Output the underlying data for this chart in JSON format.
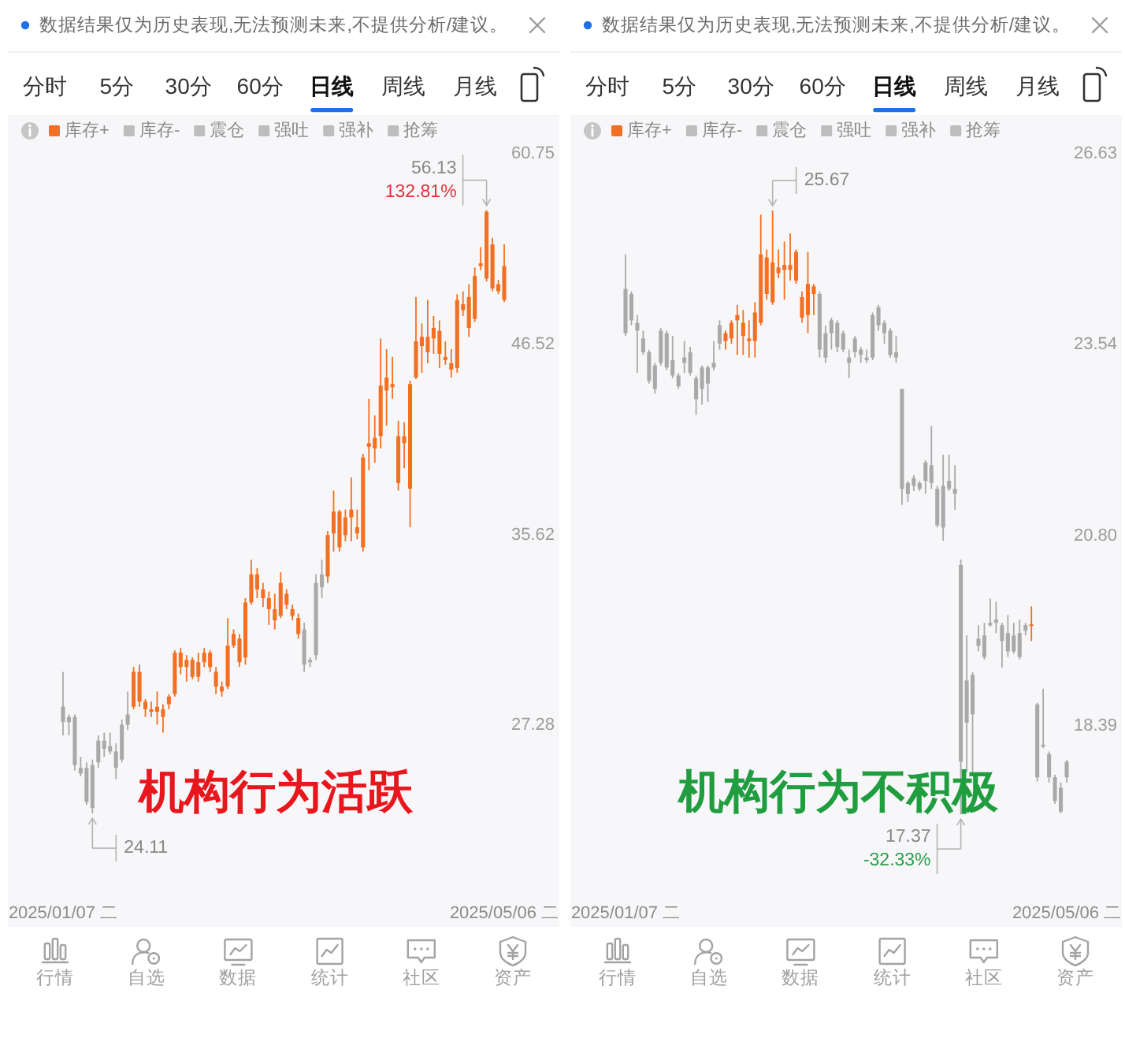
{
  "chart_data": [
    {
      "type": "candlestick",
      "legend": "top left",
      "log": true,
      "ylim": [
        20.57,
        60.75
      ],
      "yticks": [
        60.75,
        46.52,
        35.62,
        27.28
      ],
      "categories": [
        "2025/01/07 二",
        null,
        null,
        null,
        null,
        null,
        null,
        null,
        null,
        null,
        null,
        null,
        null,
        null,
        null,
        null,
        null,
        null,
        null,
        null,
        null,
        null,
        null,
        null,
        null,
        null,
        null,
        null,
        null,
        null,
        null,
        null,
        null,
        null,
        null,
        null,
        null,
        null,
        null,
        null,
        null,
        null,
        null,
        null,
        null,
        null,
        null,
        null,
        null,
        null,
        null,
        null,
        null,
        null,
        null,
        null,
        null,
        null,
        null,
        null,
        null,
        null,
        null,
        null,
        null,
        null,
        null,
        null,
        null,
        null,
        null,
        null,
        null,
        null,
        null,
        "2025/05/06 二"
      ],
      "series": [
        {
          "name": "库存+",
          "color": "#f36f21",
          "ohlc": [
            null,
            null,
            null,
            null,
            null,
            null,
            null,
            null,
            null,
            null,
            null,
            null,
            [
              28.0,
              29.6,
              27.9,
              29.4
            ],
            [
              28.2,
              29.7,
              28.0,
              29.4
            ],
            [
              27.9,
              28.3,
              27.6,
              28.2
            ],
            [
              27.8,
              28.2,
              27.6,
              27.9
            ],
            [
              27.8,
              28.6,
              27.3,
              28.0
            ],
            [
              27.6,
              28.1,
              27.0,
              27.9
            ],
            [
              28.1,
              28.5,
              27.9,
              28.4
            ],
            [
              28.5,
              30.3,
              28.4,
              30.2
            ],
            [
              29.6,
              30.4,
              29.3,
              30.2
            ],
            [
              29.6,
              30.1,
              29.0,
              29.9
            ],
            [
              29.2,
              30.0,
              29.1,
              29.9
            ],
            [
              29.2,
              30.2,
              29.0,
              29.8
            ],
            [
              29.8,
              30.4,
              29.6,
              30.2
            ],
            [
              29.6,
              30.3,
              29.4,
              30.2
            ],
            [
              28.8,
              29.6,
              28.5,
              29.4
            ],
            [
              28.6,
              29.0,
              28.4,
              28.8
            ],
            [
              28.8,
              31.7,
              28.7,
              30.5
            ],
            [
              30.5,
              31.2,
              30.4,
              31.0
            ],
            [
              29.8,
              31.0,
              29.6,
              30.8
            ],
            [
              30.0,
              32.6,
              29.7,
              32.4
            ],
            [
              32.4,
              34.4,
              32.3,
              33.7
            ],
            [
              33.0,
              34.0,
              32.6,
              33.7
            ],
            [
              32.6,
              33.3,
              32.2,
              33.0
            ],
            [
              32.1,
              32.9,
              31.4,
              32.6
            ],
            [
              31.6,
              32.8,
              31.2,
              32.1
            ],
            [
              31.8,
              33.8,
              31.7,
              33.3
            ],
            [
              32.3,
              33.0,
              32.1,
              32.8
            ],
            [
              31.8,
              32.3,
              31.6,
              32.1
            ],
            [
              31.0,
              31.9,
              30.8,
              31.7
            ],
            null,
            null,
            null,
            null,
            [
              33.6,
              35.8,
              33.3,
              35.6
            ],
            [
              35.7,
              37.9,
              34.8,
              36.8
            ],
            [
              35.0,
              36.9,
              34.8,
              36.8
            ],
            [
              35.6,
              36.9,
              35.3,
              36.5
            ],
            [
              36.5,
              38.6,
              35.3,
              36.9
            ],
            [
              35.7,
              36.9,
              35.4,
              36.0
            ],
            [
              35.0,
              39.9,
              34.8,
              39.7
            ],
            [
              40.3,
              43.1,
              39.0,
              40.5
            ],
            [
              40.2,
              42.1,
              39.4,
              40.8
            ],
            [
              40.9,
              46.9,
              40.2,
              43.9
            ],
            [
              43.6,
              46.2,
              41.5,
              44.4
            ],
            [
              43.8,
              45.7,
              43.1,
              44.0
            ],
            [
              38.3,
              41.8,
              37.9,
              40.9
            ],
            [
              40.5,
              41.7,
              39.1,
              40.9
            ],
            [
              38.0,
              44.2,
              36.0,
              44.0
            ],
            [
              44.4,
              49.7,
              44.3,
              46.7
            ],
            [
              46.4,
              47.9,
              44.7,
              47.0
            ],
            [
              46.0,
              49.5,
              45.3,
              47.0
            ],
            [
              46.9,
              48.4,
              45.9,
              47.6
            ],
            [
              45.9,
              48.1,
              45.0,
              47.4
            ],
            [
              45.5,
              46.7,
              45.2,
              45.7
            ],
            [
              44.9,
              46.2,
              44.4,
              45.3
            ],
            [
              45.0,
              49.9,
              44.7,
              49.5
            ],
            [
              48.8,
              50.1,
              48.4,
              49.2
            ],
            [
              47.6,
              50.6,
              47.0,
              49.7
            ],
            [
              48.2,
              51.8,
              48.0,
              51.2
            ],
            [
              51.9,
              53.3,
              51.6,
              52.1
            ],
            [
              51.0,
              56.13,
              50.8,
              56.0
            ],
            [
              50.3,
              54.0,
              50.1,
              53.5
            ],
            [
              50.1,
              50.9,
              49.9,
              50.6
            ],
            [
              49.5,
              53.5,
              49.35,
              51.9
            ]
          ]
        },
        {
          "color": "#a9a9a9",
          "ohlc": [
            [
              27.4,
              29.4,
              26.9,
              28.0
            ],
            [
              27.4,
              27.7,
              26.9,
              27.6
            ],
            [
              25.8,
              27.7,
              25.6,
              27.6
            ],
            [
              25.5,
              26.1,
              25.4,
              25.7
            ],
            [
              24.5,
              25.9,
              24.4,
              25.7
            ],
            [
              24.3,
              26.0,
              24.11,
              25.8
            ],
            [
              25.9,
              26.9,
              25.7,
              26.7
            ],
            [
              26.4,
              27.0,
              26.1,
              26.7
            ],
            [
              26.3,
              27.0,
              26.2,
              26.5
            ],
            [
              25.7,
              26.6,
              25.3,
              26.3
            ],
            [
              26.0,
              27.5,
              25.9,
              27.3
            ],
            [
              27.3,
              28.6,
              27.1,
              27.7
            ],
            null,
            null,
            null,
            null,
            null,
            null,
            null,
            null,
            null,
            null,
            null,
            null,
            null,
            null,
            null,
            null,
            null,
            null,
            null,
            null,
            null,
            null,
            null,
            null,
            null,
            null,
            null,
            null,
            null,
            [
              29.7,
              31.5,
              29.4,
              31.2
            ],
            [
              29.8,
              30.0,
              29.6,
              29.9
            ],
            [
              30.1,
              33.7,
              29.9,
              33.3
            ],
            [
              33.1,
              34.4,
              32.6,
              33.7
            ],
            null,
            null,
            null,
            null,
            null,
            null,
            null,
            null,
            null,
            null,
            null,
            null,
            null,
            null,
            null,
            null,
            null,
            null,
            null,
            null,
            null,
            null,
            null,
            null,
            null,
            null,
            null,
            null,
            null,
            null,
            null
          ]
        }
      ],
      "annotations": [
        "数据结果仅为历史表现,无法预测未来,不提供分析/建议。",
        "分时",
        "5分",
        "30分",
        "60分",
        "日线",
        "周线",
        "月线",
        "库存-",
        "震仓",
        "强吐",
        "强补",
        "抢筹",
        "行情",
        "自选",
        "数据",
        "统计",
        "社区",
        "资产",
        "机构行为活跃",
        "24.11",
        "56.13",
        "132.81%"
      ]
    },
    {
      "type": "candlestick",
      "legend": "top left",
      "log": true,
      "ylim": [
        16.15,
        26.63
      ],
      "yticks": [
        26.63,
        23.54,
        {
          "value": 20.8,
          "label": "20.80"
        },
        18.39
      ],
      "categories": [
        "2025/01/07 二",
        null,
        null,
        null,
        null,
        null,
        null,
        null,
        null,
        null,
        null,
        null,
        null,
        null,
        null,
        null,
        null,
        null,
        null,
        null,
        null,
        null,
        null,
        null,
        null,
        null,
        null,
        null,
        null,
        null,
        null,
        null,
        null,
        null,
        null,
        null,
        null,
        null,
        null,
        null,
        null,
        null,
        null,
        null,
        null,
        null,
        null,
        null,
        null,
        null,
        null,
        null,
        null,
        null,
        null,
        null,
        null,
        null,
        null,
        null,
        null,
        null,
        null,
        null,
        null,
        null,
        null,
        null,
        null,
        null,
        null,
        null,
        null,
        null,
        null,
        "2025/05/06 二"
      ],
      "series": [
        {
          "name": "库存+",
          "color": "#f36f21",
          "ohlc": [
            null,
            null,
            null,
            null,
            null,
            null,
            null,
            null,
            null,
            null,
            null,
            null,
            null,
            null,
            null,
            null,
            null,
            [
              23.59,
              23.75,
              23.46,
              23.71
            ],
            [
              23.63,
              23.91,
              23.55,
              23.87
            ],
            [
              23.91,
              24.15,
              23.38,
              23.99
            ],
            [
              23.67,
              24.07,
              23.38,
              23.87
            ],
            [
              23.59,
              23.91,
              23.34,
              23.63
            ],
            [
              23.59,
              24.19,
              23.34,
              24.03
            ],
            [
              23.87,
              25.6,
              23.83,
              24.95
            ],
            [
              24.32,
              25.03,
              24.23,
              24.9
            ],
            [
              24.19,
              25.67,
              24.15,
              24.82
            ],
            [
              24.65,
              25.03,
              24.57,
              24.74
            ],
            [
              24.7,
              25.16,
              24.23,
              24.78
            ],
            [
              24.7,
              25.29,
              24.53,
              24.78
            ],
            [
              24.53,
              25.03,
              24.48,
              24.99
            ],
            [
              23.95,
              24.36,
              23.87,
              24.27
            ],
            [
              23.99,
              24.99,
              23.71,
              24.48
            ],
            [
              24.32,
              24.48,
              23.99,
              24.44
            ],
            null,
            null,
            null,
            null,
            null,
            null,
            null,
            null,
            null,
            null,
            null,
            null,
            null,
            null,
            null,
            null,
            null,
            null,
            null,
            null,
            null,
            null,
            null,
            null,
            null,
            null,
            null,
            null,
            null,
            null,
            null,
            null,
            null,
            null,
            null,
            null,
            [
              19.62,
              19.87,
              19.43,
              19.64
            ],
            null,
            null,
            null,
            null,
            null,
            null
          ]
        },
        {
          "color": "#a9a9a9",
          "ohlc": [
            [
              23.71,
              24.95,
              23.67,
              24.4
            ],
            [
              23.91,
              24.36,
              23.83,
              24.32
            ],
            [
              23.75,
              23.99,
              23.11,
              23.87
            ],
            [
              23.42,
              23.75,
              23.38,
              23.63
            ],
            [
              22.99,
              23.46,
              22.95,
              23.42
            ],
            [
              22.87,
              23.26,
              22.8,
              23.22
            ],
            [
              23.26,
              23.79,
              23.22,
              23.75
            ],
            [
              23.19,
              23.75,
              23.15,
              23.71
            ],
            [
              23.07,
              23.67,
              23.03,
              23.3
            ],
            [
              22.91,
              23.11,
              22.87,
              23.07
            ],
            [
              23.26,
              23.59,
              23.11,
              23.34
            ],
            [
              23.11,
              23.5,
              23.07,
              23.42
            ],
            [
              22.72,
              23.07,
              22.49,
              23.03
            ],
            [
              22.87,
              23.22,
              22.64,
              23.19
            ],
            [
              22.95,
              23.22,
              22.68,
              23.19
            ],
            [
              23.19,
              23.59,
              23.15,
              23.26
            ],
            [
              23.55,
              23.91,
              23.46,
              23.83
            ],
            null,
            null,
            null,
            null,
            null,
            null,
            null,
            null,
            null,
            null,
            null,
            null,
            null,
            null,
            null,
            null,
            [
              23.46,
              24.36,
              23.34,
              24.32
            ],
            [
              23.34,
              23.83,
              23.26,
              23.71
            ],
            [
              23.71,
              23.95,
              23.46,
              23.91
            ],
            [
              23.5,
              23.91,
              23.42,
              23.87
            ],
            [
              23.46,
              23.75,
              23.42,
              23.71
            ],
            [
              23.26,
              23.46,
              23.03,
              23.34
            ],
            [
              23.42,
              23.67,
              23.34,
              23.63
            ],
            [
              23.38,
              23.5,
              23.26,
              23.46
            ],
            [
              23.3,
              23.46,
              23.26,
              23.34
            ],
            [
              23.34,
              24.03,
              23.3,
              23.99
            ],
            [
              23.83,
              24.15,
              23.75,
              24.11
            ],
            [
              23.71,
              23.91,
              23.55,
              23.87
            ],
            [
              23.38,
              23.79,
              23.34,
              23.75
            ],
            [
              23.34,
              23.67,
              23.26,
              23.42
            ],
            [
              21.44,
              22.87,
              21.22,
              22.87
            ],
            [
              21.37,
              21.55,
              21.26,
              21.52
            ],
            [
              21.48,
              21.63,
              21.41,
              21.59
            ],
            [
              21.44,
              21.55,
              21.41,
              21.52
            ],
            [
              21.55,
              21.84,
              21.37,
              21.81
            ],
            [
              21.52,
              22.33,
              21.44,
              21.77
            ],
            [
              20.94,
              21.48,
              20.91,
              21.44
            ],
            [
              20.91,
              21.92,
              20.73,
              21.48
            ],
            [
              21.44,
              21.92,
              21.41,
              21.55
            ],
            [
              21.37,
              21.77,
              21.15,
              21.44
            ],
            [
              17.97,
              20.48,
              17.37,
              20.41
            ],
            [
              18.43,
              19.5,
              17.85,
              18.94
            ],
            [
              18.53,
              19.04,
              17.85,
              19.01
            ],
            [
              19.37,
              19.63,
              19.3,
              19.46
            ],
            [
              19.23,
              19.66,
              19.2,
              19.5
            ],
            [
              19.63,
              19.97,
              19.61,
              19.66
            ],
            [
              19.66,
              19.93,
              19.53,
              19.7
            ],
            [
              19.43,
              19.66,
              19.1,
              19.63
            ],
            [
              19.3,
              19.76,
              19.23,
              19.53
            ],
            [
              19.3,
              19.66,
              19.27,
              19.5
            ],
            [
              19.23,
              19.7,
              19.2,
              19.53
            ],
            [
              19.56,
              19.66,
              19.5,
              19.63
            ],
            null,
            [
              17.79,
              18.67,
              17.74,
              18.65
            ],
            [
              18.15,
              18.84,
              18.13,
              18.17
            ],
            [
              17.79,
              18.09,
              17.73,
              18.06
            ],
            [
              17.52,
              17.82,
              17.49,
              17.79
            ],
            [
              17.4,
              17.73,
              17.38,
              17.67
            ],
            [
              17.79,
              17.99,
              17.73,
              17.97
            ]
          ]
        }
      ],
      "annotations": [
        "数据结果仅为历史表现,无法预测未来,不提供分析/建议。",
        "分时",
        "5分",
        "30分",
        "60分",
        "日线",
        "周线",
        "月线",
        "库存-",
        "震仓",
        "强吐",
        "强补",
        "抢筹",
        "行情",
        "自选",
        "数据",
        "统计",
        "社区",
        "资产",
        "机构行为不积极",
        "25.67",
        "17.37",
        "-32.33%"
      ]
    }
  ]
}
